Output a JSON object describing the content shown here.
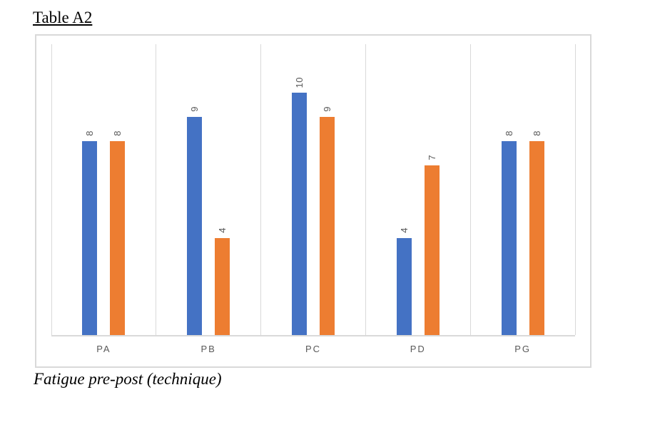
{
  "title": "Table A2",
  "caption": "Fatigue pre-post (technique)",
  "chart_data": {
    "type": "bar",
    "title": "Table A2",
    "caption": "Fatigue pre-post (technique)",
    "categories": [
      "PA",
      "PB",
      "PC",
      "PD",
      "PG"
    ],
    "series": [
      {
        "color": "#4472C4",
        "values": [
          8,
          9,
          10,
          4,
          8
        ]
      },
      {
        "color": "#ED7D31",
        "values": [
          8,
          4,
          9,
          7,
          8
        ]
      }
    ],
    "ylim": [
      0,
      12
    ],
    "data_labels": true,
    "data_label_rotation": -90,
    "legend_position": "none",
    "grid": "vertical-category-separators",
    "colors": {
      "gridline": "#d9d9d9",
      "chart_border": "#d9d9d9",
      "axis_line": "#d9d9d9",
      "label_text": "#595959"
    }
  }
}
